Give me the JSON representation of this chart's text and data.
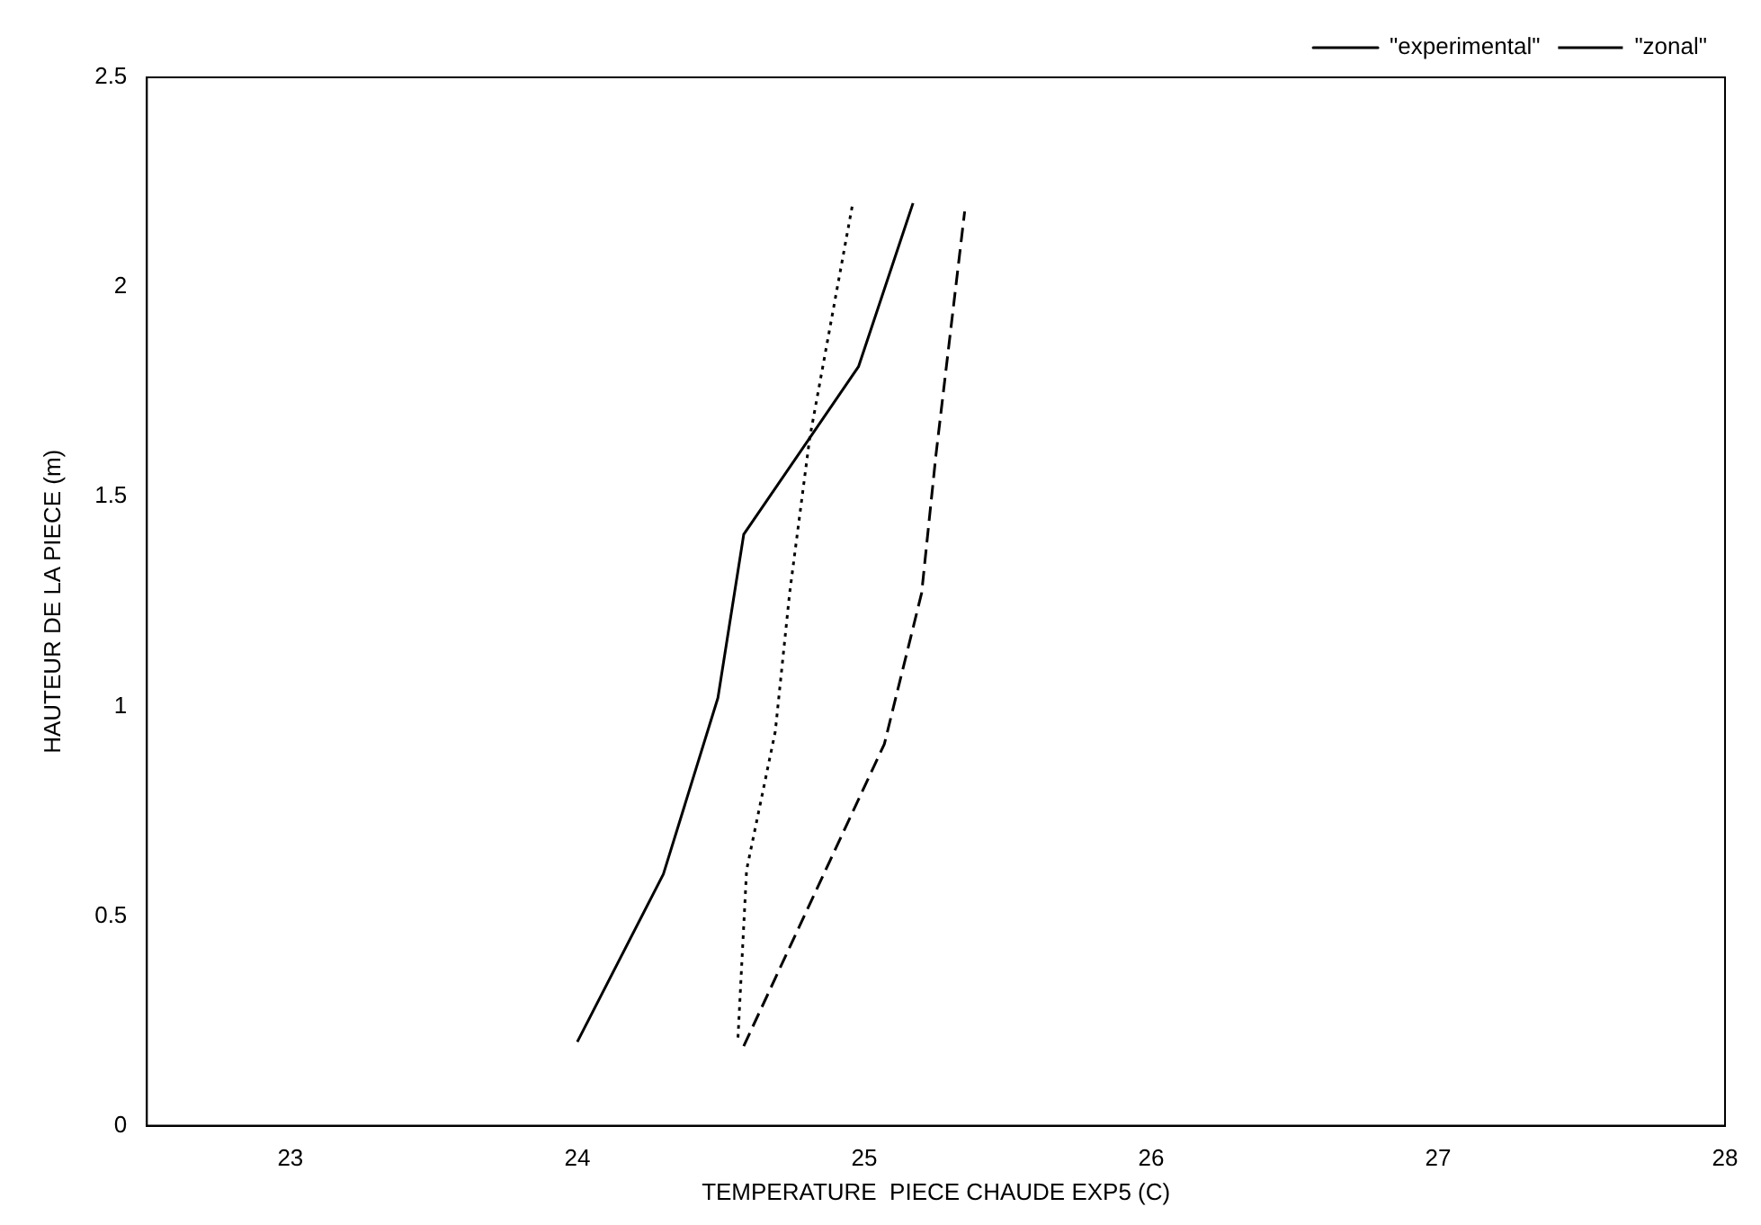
{
  "chart_data": {
    "type": "line",
    "xlabel": "TEMPERATURE  PIECE CHAUDE EXP5 (C)",
    "ylabel": "HAUTEUR DE LA PIECE (m)",
    "xlim": [
      22.5,
      28
    ],
    "xticks": [
      23,
      24,
      25,
      26,
      27,
      28
    ],
    "ylim": [
      0,
      2.5
    ],
    "yticks": [
      0,
      0.5,
      1,
      1.5,
      2,
      2.5
    ],
    "grid": false,
    "legend": "top right",
    "marker": "none",
    "series": [
      {
        "name": "\"experimental\"",
        "color": "#000000",
        "line_style": "solid",
        "x": [
          24.0,
          24.3,
          24.49,
          24.58,
          24.98,
          25.17
        ],
        "values": [
          0.2,
          0.6,
          1.02,
          1.41,
          1.81,
          2.2
        ]
      },
      {
        "name": "\"zonal\"",
        "color": "#000000",
        "line_style": "dashed",
        "x": [
          24.58,
          25.07,
          25.2,
          25.25,
          25.35
        ],
        "values": [
          0.19,
          0.91,
          1.27,
          1.6,
          2.18
        ]
      },
      {
        "color": "#000000",
        "line_style": "dotted",
        "x": [
          24.56,
          24.59,
          24.69,
          24.74,
          24.81,
          24.96
        ],
        "values": [
          0.21,
          0.61,
          0.94,
          1.27,
          1.64,
          2.2
        ]
      }
    ]
  }
}
